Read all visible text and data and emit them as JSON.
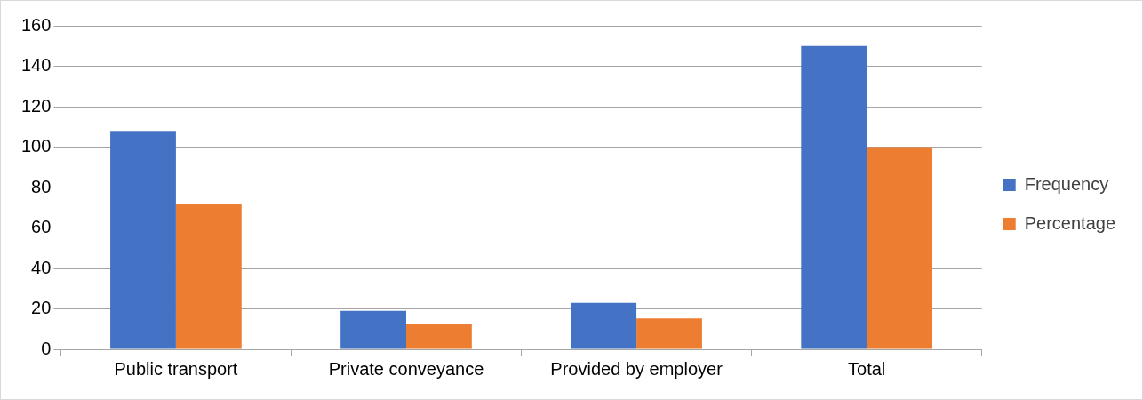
{
  "chart_data": {
    "type": "bar",
    "categories": [
      "Public transport",
      "Private conveyance",
      "Provided by employer",
      "Total"
    ],
    "series": [
      {
        "name": "Frequency",
        "color": "#4472c4",
        "values": [
          108,
          19,
          23,
          150
        ]
      },
      {
        "name": "Percentage",
        "color": "#ed7d31",
        "values": [
          72,
          12.7,
          15.3,
          100
        ]
      }
    ],
    "ylim": [
      0,
      160
    ],
    "yticks": [
      0,
      20,
      40,
      60,
      80,
      100,
      120,
      140,
      160
    ],
    "grid": "y",
    "legend": "right"
  }
}
